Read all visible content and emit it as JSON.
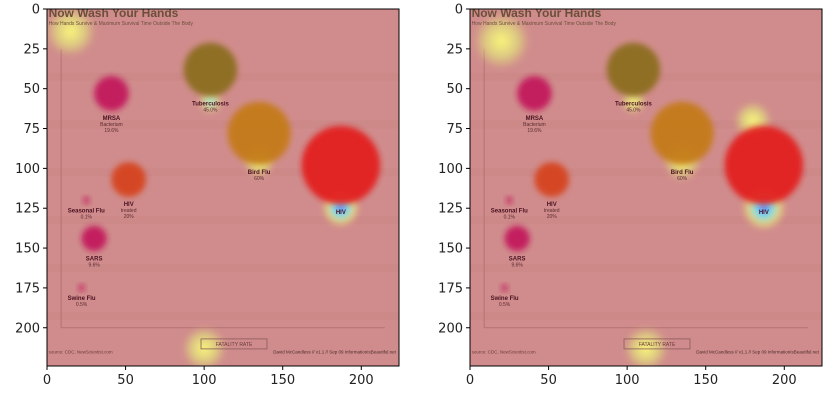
{
  "chart_data": [
    {
      "type": "heatmap",
      "panel": "left",
      "xlim": [
        0,
        224
      ],
      "ylim": [
        224,
        0
      ],
      "x_ticks": [
        0,
        50,
        100,
        150,
        200
      ],
      "y_ticks": [
        0,
        25,
        50,
        75,
        100,
        125,
        150,
        175,
        200
      ],
      "image": {
        "title": "Now Wash Your Hands",
        "subtitle": "How Hands Survive & Maximum Survival Time Outside The Body",
        "axis_label": "FATALITY RATE",
        "footer_left": "source: CDC, NewScientist.com",
        "footer_right": "David McCandless // v1.1 // Sep 09  InformationIsBeautiful.net",
        "bubbles": [
          {
            "name": "MRSA",
            "detail": "Bacterium",
            "value": "19.6%",
            "cx": 41,
            "cy": 53,
            "r": 11,
            "color": "#c2185b"
          },
          {
            "name": "Tuberculosis",
            "detail": "",
            "value": "45.0%",
            "cx": 104,
            "cy": 38,
            "r": 17,
            "color": "#8a6d1a"
          },
          {
            "name": "Bird Flu",
            "detail": "",
            "value": "60%",
            "cx": 135,
            "cy": 78,
            "r": 20,
            "color": "#c47a12"
          },
          {
            "name": "HIV",
            "detail": "",
            "value": "",
            "cx": 187,
            "cy": 98,
            "r": 25,
            "color": "#e31b1b"
          },
          {
            "name": "Seasonal Flu",
            "detail": "",
            "value": "0.1%",
            "cx": 25,
            "cy": 120,
            "r": 2,
            "color": "#c2185b"
          },
          {
            "name": "HIV",
            "detail": "treated",
            "value": "20%",
            "cx": 52,
            "cy": 107,
            "r": 11,
            "color": "#d6421a"
          },
          {
            "name": "SARS",
            "detail": "",
            "value": "9.6%",
            "cx": 30,
            "cy": 144,
            "r": 8,
            "color": "#c2185b"
          },
          {
            "name": "Swine Flu",
            "detail": "",
            "value": "0.5%",
            "cx": 22,
            "cy": 175,
            "r": 2,
            "color": "#c2185b"
          }
        ],
        "hotspots": [
          {
            "cx": 187,
            "cy": 125,
            "r": 12,
            "kind": "blue"
          },
          {
            "cx": 104,
            "cy": 58,
            "r": 8,
            "kind": "cyan"
          },
          {
            "cx": 15,
            "cy": 14,
            "r": 16,
            "kind": "yellow"
          },
          {
            "cx": 135,
            "cy": 96,
            "r": 10,
            "kind": "yellow"
          },
          {
            "cx": 100,
            "cy": 213,
            "r": 14,
            "kind": "yellow"
          }
        ]
      }
    },
    {
      "type": "heatmap",
      "panel": "right",
      "xlim": [
        0,
        224
      ],
      "ylim": [
        224,
        0
      ],
      "x_ticks": [
        0,
        50,
        100,
        150,
        200
      ],
      "y_ticks": [
        0,
        25,
        50,
        75,
        100,
        125,
        150,
        175,
        200
      ],
      "image": {
        "title": "Now Wash Your Hands",
        "subtitle": "How Hands Survive & Maximum Survival Time Outside The Body",
        "axis_label": "FATALITY RATE",
        "footer_left": "source: CDC, NewScientist.com",
        "footer_right": "David McCandless // v1.1 // Sep 09  InformationIsBeautiful.net",
        "bubbles": [
          {
            "name": "MRSA",
            "detail": "Bacterium",
            "value": "19.6%",
            "cx": 41,
            "cy": 53,
            "r": 11,
            "color": "#c2185b"
          },
          {
            "name": "Tuberculosis",
            "detail": "",
            "value": "45.0%",
            "cx": 104,
            "cy": 38,
            "r": 17,
            "color": "#8a6d1a"
          },
          {
            "name": "Bird Flu",
            "detail": "",
            "value": "60%",
            "cx": 135,
            "cy": 78,
            "r": 20,
            "color": "#c47a12"
          },
          {
            "name": "HIV",
            "detail": "",
            "value": "",
            "cx": 187,
            "cy": 98,
            "r": 25,
            "color": "#e31b1b"
          },
          {
            "name": "Seasonal Flu",
            "detail": "",
            "value": "0.1%",
            "cx": 25,
            "cy": 120,
            "r": 2,
            "color": "#c2185b"
          },
          {
            "name": "HIV",
            "detail": "treated",
            "value": "20%",
            "cx": 52,
            "cy": 107,
            "r": 11,
            "color": "#d6421a"
          },
          {
            "name": "SARS",
            "detail": "",
            "value": "9.6%",
            "cx": 30,
            "cy": 144,
            "r": 8,
            "color": "#c2185b"
          },
          {
            "name": "Swine Flu",
            "detail": "",
            "value": "0.5%",
            "cx": 22,
            "cy": 175,
            "r": 2,
            "color": "#c2185b"
          }
        ],
        "hotspots": [
          {
            "cx": 187,
            "cy": 125,
            "r": 14,
            "kind": "blue"
          },
          {
            "cx": 20,
            "cy": 20,
            "r": 18,
            "kind": "yellow"
          },
          {
            "cx": 135,
            "cy": 96,
            "r": 12,
            "kind": "yellow"
          },
          {
            "cx": 104,
            "cy": 58,
            "r": 8,
            "kind": "yellow"
          },
          {
            "cx": 112,
            "cy": 213,
            "r": 14,
            "kind": "yellow"
          },
          {
            "cx": 180,
            "cy": 70,
            "r": 12,
            "kind": "yellow"
          }
        ]
      }
    }
  ]
}
